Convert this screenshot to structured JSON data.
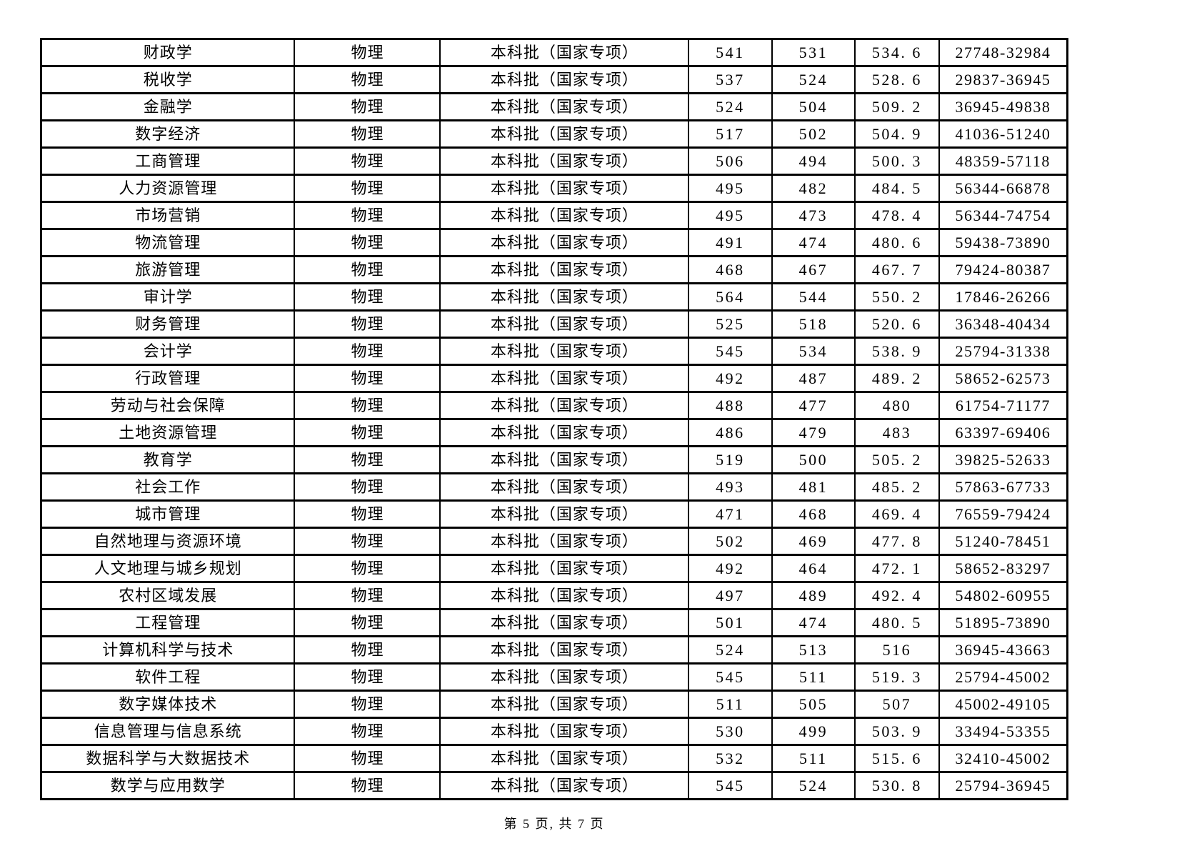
{
  "page": {
    "footer": "第 5 页, 共 7 页"
  },
  "table": {
    "column_keys": [
      "major",
      "subject",
      "batch",
      "high",
      "low",
      "avg",
      "rank"
    ],
    "column_cell_names": [
      "major-cell",
      "subject-cell",
      "batch-cell",
      "high-score-cell",
      "low-score-cell",
      "avg-score-cell",
      "rank-range-cell"
    ],
    "column_widths_percent": [
      24.7,
      14.2,
      24.2,
      8.1,
      8.1,
      8.2,
      12.5
    ],
    "rows": [
      {
        "major": "财政学",
        "subject": "物理",
        "batch": "本科批（国家专项）",
        "high": "541",
        "low": "531",
        "avg": "534. 6",
        "rank": "27748-32984"
      },
      {
        "major": "税收学",
        "subject": "物理",
        "batch": "本科批（国家专项）",
        "high": "537",
        "low": "524",
        "avg": "528. 6",
        "rank": "29837-36945"
      },
      {
        "major": "金融学",
        "subject": "物理",
        "batch": "本科批（国家专项）",
        "high": "524",
        "low": "504",
        "avg": "509. 2",
        "rank": "36945-49838"
      },
      {
        "major": "数字经济",
        "subject": "物理",
        "batch": "本科批（国家专项）",
        "high": "517",
        "low": "502",
        "avg": "504. 9",
        "rank": "41036-51240"
      },
      {
        "major": "工商管理",
        "subject": "物理",
        "batch": "本科批（国家专项）",
        "high": "506",
        "low": "494",
        "avg": "500. 3",
        "rank": "48359-57118"
      },
      {
        "major": "人力资源管理",
        "subject": "物理",
        "batch": "本科批（国家专项）",
        "high": "495",
        "low": "482",
        "avg": "484. 5",
        "rank": "56344-66878"
      },
      {
        "major": "市场营销",
        "subject": "物理",
        "batch": "本科批（国家专项）",
        "high": "495",
        "low": "473",
        "avg": "478. 4",
        "rank": "56344-74754"
      },
      {
        "major": "物流管理",
        "subject": "物理",
        "batch": "本科批（国家专项）",
        "high": "491",
        "low": "474",
        "avg": "480. 6",
        "rank": "59438-73890"
      },
      {
        "major": "旅游管理",
        "subject": "物理",
        "batch": "本科批（国家专项）",
        "high": "468",
        "low": "467",
        "avg": "467. 7",
        "rank": "79424-80387"
      },
      {
        "major": "审计学",
        "subject": "物理",
        "batch": "本科批（国家专项）",
        "high": "564",
        "low": "544",
        "avg": "550. 2",
        "rank": "17846-26266"
      },
      {
        "major": "财务管理",
        "subject": "物理",
        "batch": "本科批（国家专项）",
        "high": "525",
        "low": "518",
        "avg": "520. 6",
        "rank": "36348-40434"
      },
      {
        "major": "会计学",
        "subject": "物理",
        "batch": "本科批（国家专项）",
        "high": "545",
        "low": "534",
        "avg": "538. 9",
        "rank": "25794-31338"
      },
      {
        "major": "行政管理",
        "subject": "物理",
        "batch": "本科批（国家专项）",
        "high": "492",
        "low": "487",
        "avg": "489. 2",
        "rank": "58652-62573"
      },
      {
        "major": "劳动与社会保障",
        "subject": "物理",
        "batch": "本科批（国家专项）",
        "high": "488",
        "low": "477",
        "avg": "480",
        "rank": "61754-71177"
      },
      {
        "major": "土地资源管理",
        "subject": "物理",
        "batch": "本科批（国家专项）",
        "high": "486",
        "low": "479",
        "avg": "483",
        "rank": "63397-69406"
      },
      {
        "major": "教育学",
        "subject": "物理",
        "batch": "本科批（国家专项）",
        "high": "519",
        "low": "500",
        "avg": "505. 2",
        "rank": "39825-52633"
      },
      {
        "major": "社会工作",
        "subject": "物理",
        "batch": "本科批（国家专项）",
        "high": "493",
        "low": "481",
        "avg": "485. 2",
        "rank": "57863-67733"
      },
      {
        "major": "城市管理",
        "subject": "物理",
        "batch": "本科批（国家专项）",
        "high": "471",
        "low": "468",
        "avg": "469. 4",
        "rank": "76559-79424"
      },
      {
        "major": "自然地理与资源环境",
        "subject": "物理",
        "batch": "本科批（国家专项）",
        "high": "502",
        "low": "469",
        "avg": "477. 8",
        "rank": "51240-78451"
      },
      {
        "major": "人文地理与城乡规划",
        "subject": "物理",
        "batch": "本科批（国家专项）",
        "high": "492",
        "low": "464",
        "avg": "472. 1",
        "rank": "58652-83297"
      },
      {
        "major": "农村区域发展",
        "subject": "物理",
        "batch": "本科批（国家专项）",
        "high": "497",
        "low": "489",
        "avg": "492. 4",
        "rank": "54802-60955"
      },
      {
        "major": "工程管理",
        "subject": "物理",
        "batch": "本科批（国家专项）",
        "high": "501",
        "low": "474",
        "avg": "480. 5",
        "rank": "51895-73890"
      },
      {
        "major": "计算机科学与技术",
        "subject": "物理",
        "batch": "本科批（国家专项）",
        "high": "524",
        "low": "513",
        "avg": "516",
        "rank": "36945-43663"
      },
      {
        "major": "软件工程",
        "subject": "物理",
        "batch": "本科批（国家专项）",
        "high": "545",
        "low": "511",
        "avg": "519. 3",
        "rank": "25794-45002"
      },
      {
        "major": "数字媒体技术",
        "subject": "物理",
        "batch": "本科批（国家专项）",
        "high": "511",
        "low": "505",
        "avg": "507",
        "rank": "45002-49105"
      },
      {
        "major": "信息管理与信息系统",
        "subject": "物理",
        "batch": "本科批（国家专项）",
        "high": "530",
        "low": "499",
        "avg": "503. 9",
        "rank": "33494-53355"
      },
      {
        "major": "数据科学与大数据技术",
        "subject": "物理",
        "batch": "本科批（国家专项）",
        "high": "532",
        "low": "511",
        "avg": "515. 6",
        "rank": "32410-45002"
      },
      {
        "major": "数学与应用数学",
        "subject": "物理",
        "batch": "本科批（国家专项）",
        "high": "545",
        "low": "524",
        "avg": "530. 8",
        "rank": "25794-36945"
      }
    ]
  }
}
